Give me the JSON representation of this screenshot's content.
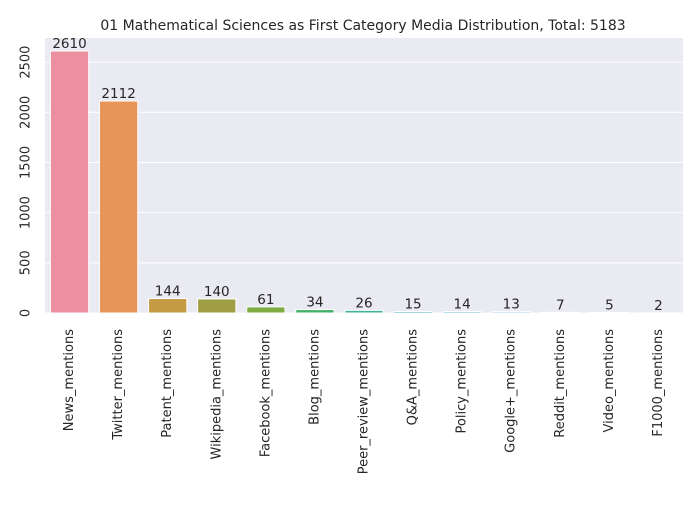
{
  "chart_data": {
    "type": "bar",
    "title": "01 Mathematical Sciences as First Category Media Distribution, Total: 5183",
    "xlabel": "",
    "ylabel": "",
    "categories": [
      "News_mentions",
      "Twitter_mentions",
      "Patent_mentions",
      "Wikipedia_mentions",
      "Facebook_mentions",
      "Blog_mentions",
      "Peer_review_mentions",
      "Q&A_mentions",
      "Policy_mentions",
      "Google+_mentions",
      "Reddit_mentions",
      "Video_mentions",
      "F1000_mentions"
    ],
    "values": [
      2610,
      2112,
      144,
      140,
      61,
      34,
      26,
      15,
      14,
      13,
      7,
      5,
      2
    ],
    "colors": [
      "#ec8fa0",
      "#e8955a",
      "#c49a44",
      "#a09e42",
      "#7fad43",
      "#43b16a",
      "#45b09b",
      "#48acb5",
      "#4ca8cc",
      "#7ba6ea",
      "#b99cf0",
      "#e389e8",
      "#ee8ac6"
    ],
    "ylim": [
      0,
      2740
    ],
    "yticks": [
      0,
      500,
      1000,
      1500,
      2000,
      2500
    ],
    "grid": true,
    "background": "#eaeaf2"
  }
}
